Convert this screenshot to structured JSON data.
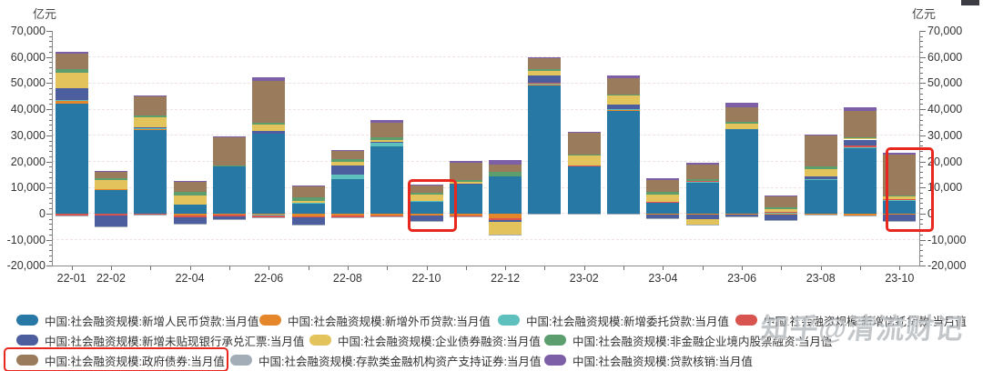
{
  "watermark": {
    "text": "知乎@清流财记"
  },
  "chart_data": {
    "type": "bar",
    "stacked": true,
    "title": "",
    "unit_left": "亿元",
    "unit_right": "亿元",
    "ylim": [
      -20000,
      70000
    ],
    "ytick_step": 10000,
    "ytick_minor_step": 2000,
    "grid": "dashed-horizontal",
    "legend_position": "bottom",
    "categories": [
      "22-01",
      "22-02",
      "22-03",
      "22-04",
      "22-05",
      "22-06",
      "22-07",
      "22-08",
      "22-09",
      "22-10",
      "22-11",
      "22-12",
      "23-01",
      "23-02",
      "23-03",
      "23-04",
      "23-05",
      "23-06",
      "23-07",
      "23-08",
      "23-09",
      "23-10"
    ],
    "xtick_visible_indices": [
      0,
      1,
      3,
      5,
      7,
      9,
      11,
      13,
      15,
      17,
      19,
      21
    ],
    "series": [
      {
        "name": "中国:社会融资规模:新增人民币贷款:当月值",
        "color": "#2878a6",
        "values": [
          41998,
          9084,
          32291,
          3616,
          18233,
          30540,
          4088,
          13300,
          25719,
          4431,
          11448,
          14401,
          49310,
          18184,
          39487,
          4431,
          12219,
          32413,
          364,
          13174,
          25369,
          4837
        ]
      },
      {
        "name": "中国:社会融资规模:新增外币贷款:当月值",
        "color": "#e6862a",
        "values": [
          1031,
          480,
          239,
          -760,
          -240,
          -291,
          -1137,
          -826,
          -713,
          -724,
          -648,
          -1665,
          131,
          310,
          427,
          -319,
          -338,
          -191,
          -339,
          -201,
          -583,
          -429
        ]
      },
      {
        "name": "中国:社会融资规模:新增委托贷款:当月值",
        "color": "#5ec0bc",
        "values": [
          428,
          -74,
          106,
          -2,
          -132,
          -380,
          89,
          1755,
          1507,
          470,
          -88,
          -101,
          584,
          -77,
          174,
          83,
          35,
          -57,
          8,
          97,
          208,
          429
        ]
      },
      {
        "name": "中国:社会融资规模:新增信托贷款:当月值",
        "color": "#d9534f",
        "values": [
          -680,
          -751,
          -259,
          -615,
          -619,
          -828,
          -398,
          -472,
          -192,
          -61,
          -365,
          -764,
          62,
          66,
          -45,
          119,
          303,
          -153,
          230,
          -221,
          402,
          393
        ]
      },
      {
        "name": "中国:社会融资规模:新增未贴现银行承兑汇票:当月值",
        "color": "#4d5e9e",
        "values": [
          4731,
          -4228,
          286,
          -2557,
          -1068,
          1065,
          -2744,
          3485,
          134,
          -2157,
          190,
          -554,
          2963,
          -70,
          1790,
          -1347,
          -1797,
          -692,
          -1962,
          1129,
          2396,
          -2536
        ]
      },
      {
        "name": "中国:社会融资规模:企业债券融资:当月值",
        "color": "#e3c35c",
        "values": [
          5799,
          3377,
          3894,
          3479,
          -108,
          2495,
          734,
          1148,
          876,
          2325,
          596,
          -4887,
          1486,
          3644,
          3288,
          2843,
          -2175,
          2221,
          1179,
          2698,
          663,
          1144
        ]
      },
      {
        "name": "中国:社会融资规模:非金融企业境内股票融资:当月值",
        "color": "#5d9e6e",
        "values": [
          1439,
          585,
          958,
          1166,
          292,
          588,
          1437,
          1251,
          1021,
          788,
          788,
          1485,
          964,
          571,
          614,
          993,
          753,
          701,
          786,
          1036,
          327,
          321
        ]
      },
      {
        "name": "中国:社会融资规模:政府债券:当月值",
        "color": "#9a7b5c",
        "values": [
          6026,
          2722,
          7052,
          3912,
          10582,
          16184,
          3998,
          3045,
          5525,
          2791,
          6520,
          2809,
          4140,
          8138,
          6022,
          4548,
          5571,
          5388,
          4109,
          11800,
          9949,
          15600
        ]
      },
      {
        "name": "中国:社会融资规模:存款类金融机构资产支持证券:当月值",
        "color": "#a3adb8",
        "values": [
          -168,
          -247,
          -62,
          -182,
          -100,
          -92,
          -131,
          -102,
          -60,
          -56,
          -88,
          -207,
          -318,
          -172,
          -38,
          -88,
          -53,
          -73,
          -228,
          -63,
          -60,
          -81
        ]
      },
      {
        "name": "中国:社会融资规模:贷款核销:当月值",
        "color": "#7d5fa8",
        "values": [
          417,
          281,
          590,
          441,
          599,
          1450,
          460,
          547,
          1086,
          430,
          499,
          1788,
          312,
          338,
          996,
          422,
          512,
          1621,
          331,
          418,
          1533,
          438
        ]
      }
    ],
    "annotations": {
      "highlight_color": "#e8281e",
      "highlighted_items": [
        "bar 22-10",
        "bar 23-10",
        "legend 中国:社会融资规模:政府债券:当月值"
      ]
    }
  }
}
